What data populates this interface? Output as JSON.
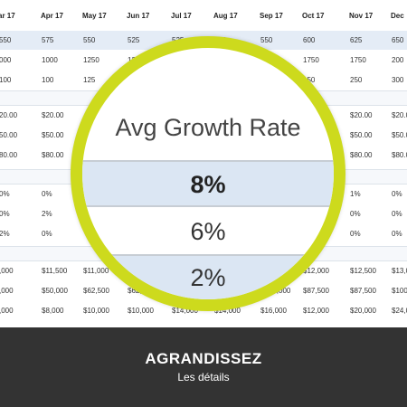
{
  "sheet": {
    "months": [
      "ar 17",
      "Apr 17",
      "May 17",
      "Jun 17",
      "Jul 17",
      "Aug 17",
      "Sep 17",
      "Oct 17",
      "Nov 17",
      "Dec"
    ],
    "rows": [
      {
        "group": 1,
        "shade": true,
        "cells": [
          "550",
          "575",
          "550",
          "525",
          "525",
          "550",
          "550",
          "600",
          "625",
          "650"
        ]
      },
      {
        "group": 1,
        "shade": false,
        "cells": [
          "000",
          "1000",
          "1250",
          "1250",
          "",
          "",
          "2000",
          "1750",
          "1750",
          "200"
        ]
      },
      {
        "group": 1,
        "shade": false,
        "cells": [
          "100",
          "100",
          "125",
          "",
          "",
          "",
          "",
          "150",
          "250",
          "300"
        ]
      },
      {
        "group": 2,
        "shade": false,
        "cells": [
          "20.00",
          "$20.00",
          "",
          "",
          "",
          "",
          "",
          "",
          "$20.00",
          "$20.0"
        ]
      },
      {
        "group": 2,
        "shade": false,
        "cells": [
          "50.00",
          "$50.00",
          "",
          "",
          "",
          "",
          "",
          "",
          "$50.00",
          "$50.0"
        ]
      },
      {
        "group": 2,
        "shade": false,
        "cells": [
          "80.00",
          "$80.00",
          "",
          "",
          "",
          "",
          "",
          "",
          "$80.00",
          "$80.0"
        ]
      },
      {
        "group": 3,
        "shade": false,
        "cells": [
          "0%",
          "0%",
          "",
          "",
          "",
          "",
          "",
          "",
          "1%",
          "0%"
        ]
      },
      {
        "group": 3,
        "shade": false,
        "cells": [
          "0%",
          "2%",
          "",
          "",
          "",
          "",
          "",
          "",
          "0%",
          "0%"
        ]
      },
      {
        "group": 3,
        "shade": false,
        "cells": [
          "2%",
          "0%",
          "",
          "",
          "",
          "",
          "",
          "",
          "0%",
          "0%"
        ]
      },
      {
        "group": 4,
        "shade": false,
        "cells": [
          ",000",
          "$11,500",
          "$11,000",
          "",
          "",
          "",
          "",
          "$12,000",
          "$12,500",
          "$13,0"
        ]
      },
      {
        "group": 4,
        "shade": false,
        "cells": [
          ",000",
          "$50,000",
          "$62,500",
          "$62,500",
          "",
          "",
          "$100,000",
          "$87,500",
          "$87,500",
          "$100,0"
        ]
      },
      {
        "group": 4,
        "shade": false,
        "cells": [
          ",000",
          "$8,000",
          "$10,000",
          "$10,000",
          "$14,000",
          "$14,000",
          "$16,000",
          "$12,000",
          "$20,000",
          "$24,0"
        ]
      }
    ]
  },
  "lens": {
    "title": "Avg Growth Rate",
    "values": [
      "8%",
      "6%",
      "2%"
    ]
  },
  "footer": {
    "title": "AGRANDISSEZ",
    "subtitle": "Les détails"
  },
  "colors": {
    "lens_ring": "#cdda1d",
    "footer_bg": "#333333",
    "row_shade": "#e4ecf6"
  }
}
